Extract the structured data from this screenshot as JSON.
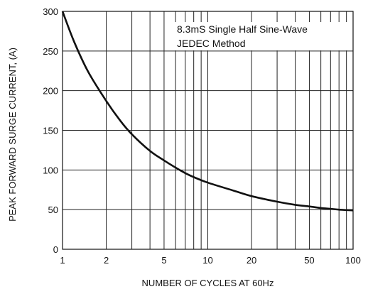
{
  "chart_data": {
    "type": "line",
    "x_scale": "log",
    "xlim": [
      1,
      100
    ],
    "ylim": [
      0,
      300
    ],
    "xlabel": "NUMBER OF CYCLES AT 60Hz",
    "ylabel": "PEAK  FORWARD SURGE CURRENT, (A)",
    "x_tick_labels": [
      "1",
      "2",
      "5",
      "10",
      "20",
      "50",
      "100"
    ],
    "x_ticks": [
      1,
      2,
      5,
      10,
      20,
      50,
      100
    ],
    "y_ticks": [
      0,
      50,
      100,
      150,
      200,
      250,
      300
    ],
    "y_tick_labels": [
      "0",
      "50",
      "100",
      "150",
      "200",
      "250",
      "300"
    ],
    "grid": true,
    "annotation": [
      "8.3mS Single Half Sine-Wave",
      "JEDEC Method"
    ],
    "series": [
      {
        "x": [
          1,
          1.2,
          1.5,
          2,
          2.5,
          3,
          4,
          5,
          6,
          7,
          8,
          10,
          15,
          20,
          30,
          40,
          50,
          60,
          70,
          80,
          100
        ],
        "y": [
          300,
          262,
          224,
          187,
          162,
          145,
          124,
          112,
          103,
          96,
          91,
          84,
          74,
          67,
          60,
          56,
          54,
          52,
          51,
          50,
          49
        ]
      }
    ]
  }
}
